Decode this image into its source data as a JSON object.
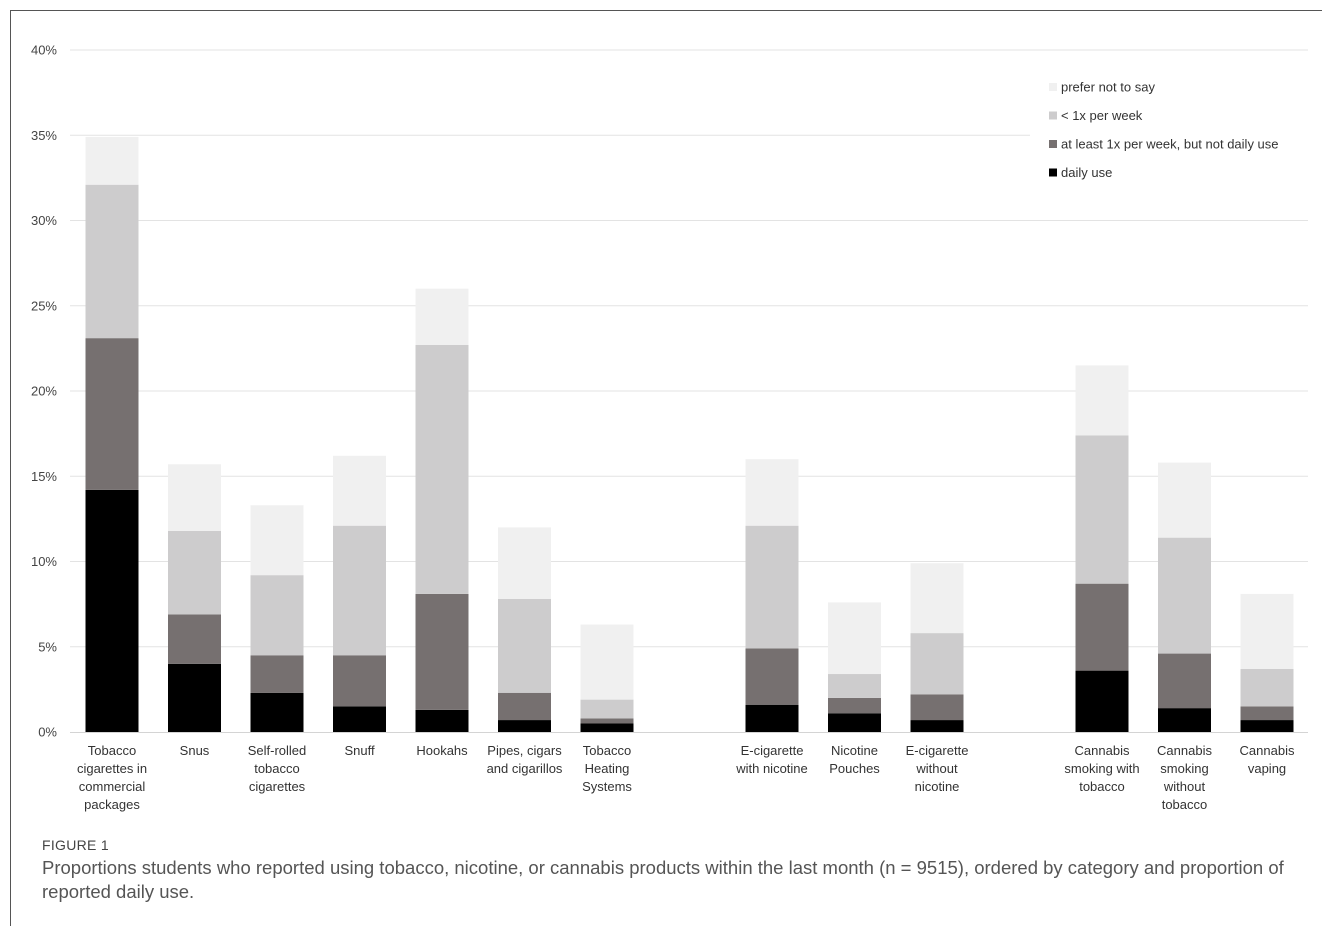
{
  "figure": {
    "label": "FIGURE 1",
    "caption": "Proportions students who reported using tobacco, nicotine, or cannabis products within the last month (n = 9515), ordered by category and proportion of reported daily use."
  },
  "chart_data": {
    "type": "bar",
    "stacked": true,
    "title": "",
    "xlabel": "",
    "ylabel": "",
    "ylim": [
      0,
      40
    ],
    "y_ticks": [
      "0%",
      "5%",
      "10%",
      "15%",
      "20%",
      "25%",
      "30%",
      "35%",
      "40%"
    ],
    "y_tick_values": [
      0,
      5,
      10,
      15,
      20,
      25,
      30,
      35,
      40
    ],
    "grid": true,
    "legend_position": "top-right",
    "categories": [
      "Tobacco cigarettes in commercial packages",
      "Snus",
      "Self-rolled tobacco cigarettes",
      "Snuff",
      "Hookahs",
      "Pipes, cigars and cigarillos",
      "Tobacco Heating Systems",
      "E-cigarette with nicotine",
      "Nicotine Pouches",
      "E-cigarette without nicotine",
      "Cannabis smoking with tobacco",
      "Cannabis smoking without tobacco",
      "Cannabis vaping"
    ],
    "category_lines": [
      [
        "Tobacco",
        "cigarettes in",
        "commercial",
        "packages"
      ],
      [
        "Snus"
      ],
      [
        "Self-rolled",
        "tobacco",
        "cigarettes"
      ],
      [
        "Snuff"
      ],
      [
        "Hookahs"
      ],
      [
        "Pipes, cigars",
        "and cigarillos"
      ],
      [
        "Tobacco",
        "Heating",
        "Systems"
      ],
      [
        "E-cigarette",
        "with nicotine"
      ],
      [
        "Nicotine",
        "Pouches"
      ],
      [
        "E-cigarette",
        "without",
        "nicotine"
      ],
      [
        "Cannabis",
        "smoking with",
        "tobacco"
      ],
      [
        "Cannabis",
        "smoking",
        "without",
        "tobacco"
      ],
      [
        "Cannabis",
        "vaping"
      ]
    ],
    "groups": [
      [
        0,
        1,
        2,
        3,
        4,
        5,
        6
      ],
      [
        7,
        8,
        9
      ],
      [
        10,
        11,
        12
      ]
    ],
    "series": [
      {
        "name": "daily use",
        "color": "#000000",
        "values": [
          14.2,
          4.0,
          2.3,
          1.5,
          1.3,
          0.7,
          0.5,
          1.6,
          1.1,
          0.7,
          3.6,
          1.4,
          0.7
        ]
      },
      {
        "name": "at least 1x per week, but not daily use",
        "color": "#767070",
        "values": [
          8.9,
          2.9,
          2.2,
          3.0,
          6.8,
          1.6,
          0.3,
          3.3,
          0.9,
          1.5,
          5.1,
          3.2,
          0.8
        ]
      },
      {
        "name": "< 1x per week",
        "color": "#cdcccd",
        "values": [
          9.0,
          4.9,
          4.7,
          7.6,
          14.6,
          5.5,
          1.1,
          7.2,
          1.4,
          3.6,
          8.7,
          6.8,
          2.2
        ]
      },
      {
        "name": "prefer not to say",
        "color": "#f0f0f0",
        "values": [
          2.8,
          3.9,
          4.1,
          4.1,
          3.3,
          4.2,
          4.4,
          3.9,
          4.2,
          4.1,
          4.1,
          4.4,
          4.4
        ]
      }
    ],
    "legend_order": [
      "prefer not to say",
      "< 1x per week",
      "at least 1x per week, but not daily use",
      "daily use"
    ]
  }
}
